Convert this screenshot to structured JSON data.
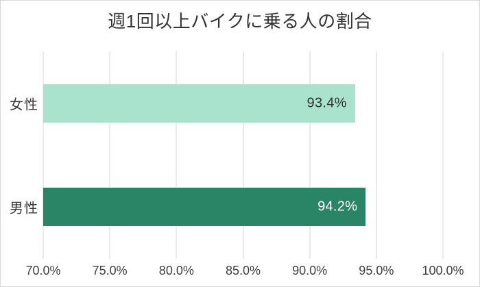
{
  "chart_data": {
    "type": "bar",
    "orientation": "horizontal",
    "title": "週1回以上バイクに乗る人の割合",
    "categories": [
      "女性",
      "男性"
    ],
    "values": [
      93.4,
      94.2
    ],
    "value_labels": [
      "93.4%",
      "94.2%"
    ],
    "bar_colors": [
      "#a9e3ce",
      "#2a8566"
    ],
    "value_label_colors": [
      "#333333",
      "#ffffff"
    ],
    "xlim": [
      70,
      100
    ],
    "xticks": [
      70,
      75,
      80,
      85,
      90,
      95,
      100
    ],
    "xtick_labels": [
      "70.0%",
      "75.0%",
      "80.0%",
      "85.0%",
      "90.0%",
      "95.0%",
      "100.0%"
    ],
    "grid": "vertical-only",
    "legend": "none",
    "background_color": "#ffffff",
    "gridline_color": "#eaeaea",
    "border_color": "#d7d7d7",
    "title_color": "#333333",
    "tick_label_color": "#3f3f3f"
  }
}
